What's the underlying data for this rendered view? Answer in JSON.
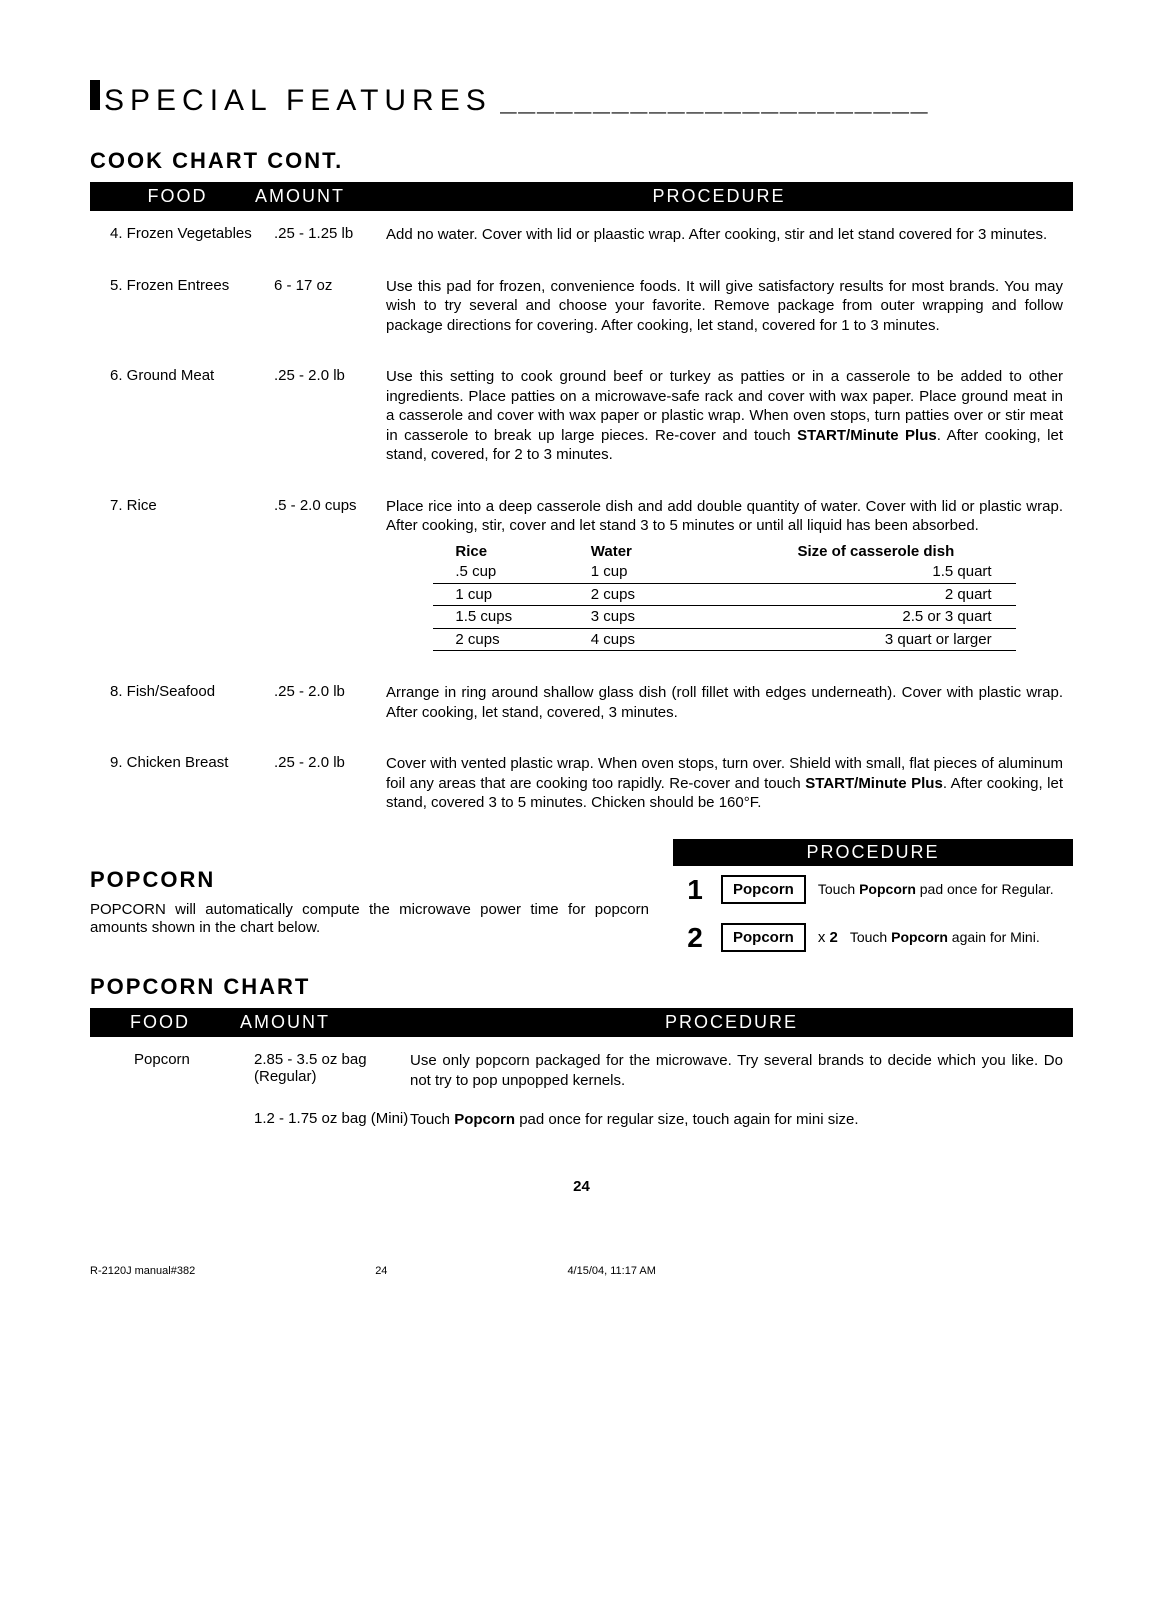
{
  "section": {
    "title": "SPECIAL FEATURES",
    "dashes": "_______________________"
  },
  "headings": {
    "cook_chart_cont": "COOK CHART CONT.",
    "popcorn": "POPCORN",
    "popcorn_chart": "POPCORN CHART"
  },
  "table_headers": {
    "food": "FOOD",
    "amount": "AMOUNT",
    "procedure": "PROCEDURE"
  },
  "cook_rows": [
    {
      "food": "4. Frozen Vegetables",
      "amount": ".25 - 1.25 lb",
      "procedure": "Add no water. Cover with lid or plaastic wrap. After cooking, stir and let stand covered for 3 minutes."
    },
    {
      "food": "5. Frozen Entrees",
      "amount": "6 - 17 oz",
      "procedure": "Use this pad for frozen, convenience foods. It will give satisfactory results for most brands. You may wish to try several and choose your favorite. Remove package from outer wrapping and follow package directions for covering. After cooking, let stand, covered for 1 to 3 minutes."
    },
    {
      "food": "6. Ground Meat",
      "amount": ".25 - 2.0 lb",
      "procedure_html": "Use this setting to cook ground beef or turkey as patties or in a casserole to be added to other ingredients. Place patties on a microwave-safe rack and cover with wax paper. Place ground meat in a casserole and cover with wax paper or plastic wrap. When oven stops, turn patties over or stir meat in casserole to break up large pieces. Re-cover and touch <b>START/Minute Plus</b>. After cooking, let stand, covered, for 2 to 3 minutes."
    },
    {
      "food": "7. Rice",
      "amount": ".5 - 2.0 cups",
      "procedure": "Place rice into a deep casserole dish and add double quantity of water. Cover with lid or plastic wrap. After cooking, stir, cover and let stand 3 to 5 minutes or until all liquid has been absorbed.",
      "rice_table": {
        "headers": {
          "rice": "Rice",
          "water": "Water",
          "size": "Size of casserole dish"
        },
        "rows": [
          {
            "rice": ".5  cup",
            "water": "1  cup",
            "size": "1.5  quart"
          },
          {
            "rice": "1  cup",
            "water": "2  cups",
            "size": "2  quart"
          },
          {
            "rice": "1.5  cups",
            "water": "3  cups",
            "size": "2.5 or 3  quart"
          },
          {
            "rice": "2  cups",
            "water": "4  cups",
            "size": "3  quart or larger"
          }
        ]
      }
    },
    {
      "food": "8. Fish/Seafood",
      "amount": ".25 - 2.0 lb",
      "procedure": "Arrange in ring around shallow glass dish (roll fillet with edges underneath). Cover with plastic wrap. After cooking, let stand, covered, 3 minutes."
    },
    {
      "food": "9. Chicken Breast",
      "amount": ".25 - 2.0 lb",
      "procedure_html": "Cover with vented plastic wrap. When oven stops, turn over. Shield with small, flat pieces of aluminum foil any areas that are cooking too rapidly. Re-cover and touch <b>START/Minute Plus</b>. After cooking, let stand, covered 3 to 5 minutes. Chicken should be 160°F."
    }
  ],
  "popcorn_desc": "POPCORN will automatically compute the microwave power time for popcorn amounts shown in the chart below.",
  "popcorn_procedure": {
    "header": "PROCEDURE",
    "steps": [
      {
        "num": "1",
        "btn": "Popcorn",
        "mult": "",
        "text_html": "Touch <b>Popcorn</b> pad once for Regular."
      },
      {
        "num": "2",
        "btn": "Popcorn",
        "mult": "x 2",
        "text_html": "Touch <b>Popcorn</b> again for Mini."
      }
    ]
  },
  "popcorn_chart": {
    "rows": [
      {
        "food": "Popcorn",
        "amount": "2.85 - 3.5 oz bag (Regular)",
        "procedure": "Use only popcorn packaged for the microwave. Try several brands to decide which you like. Do not try to pop unpopped kernels."
      },
      {
        "food": "",
        "amount": "1.2 - 1.75 oz bag (Mini)",
        "procedure_html": "Touch <b>Popcorn</b> pad once for regular size, touch again for mini size."
      }
    ]
  },
  "page_number": "24",
  "footer": {
    "file": "R-2120J manual#382",
    "page": "24",
    "timestamp": "4/15/04, 11:17 AM"
  },
  "colors": {
    "black": "#000000",
    "white": "#ffffff"
  }
}
